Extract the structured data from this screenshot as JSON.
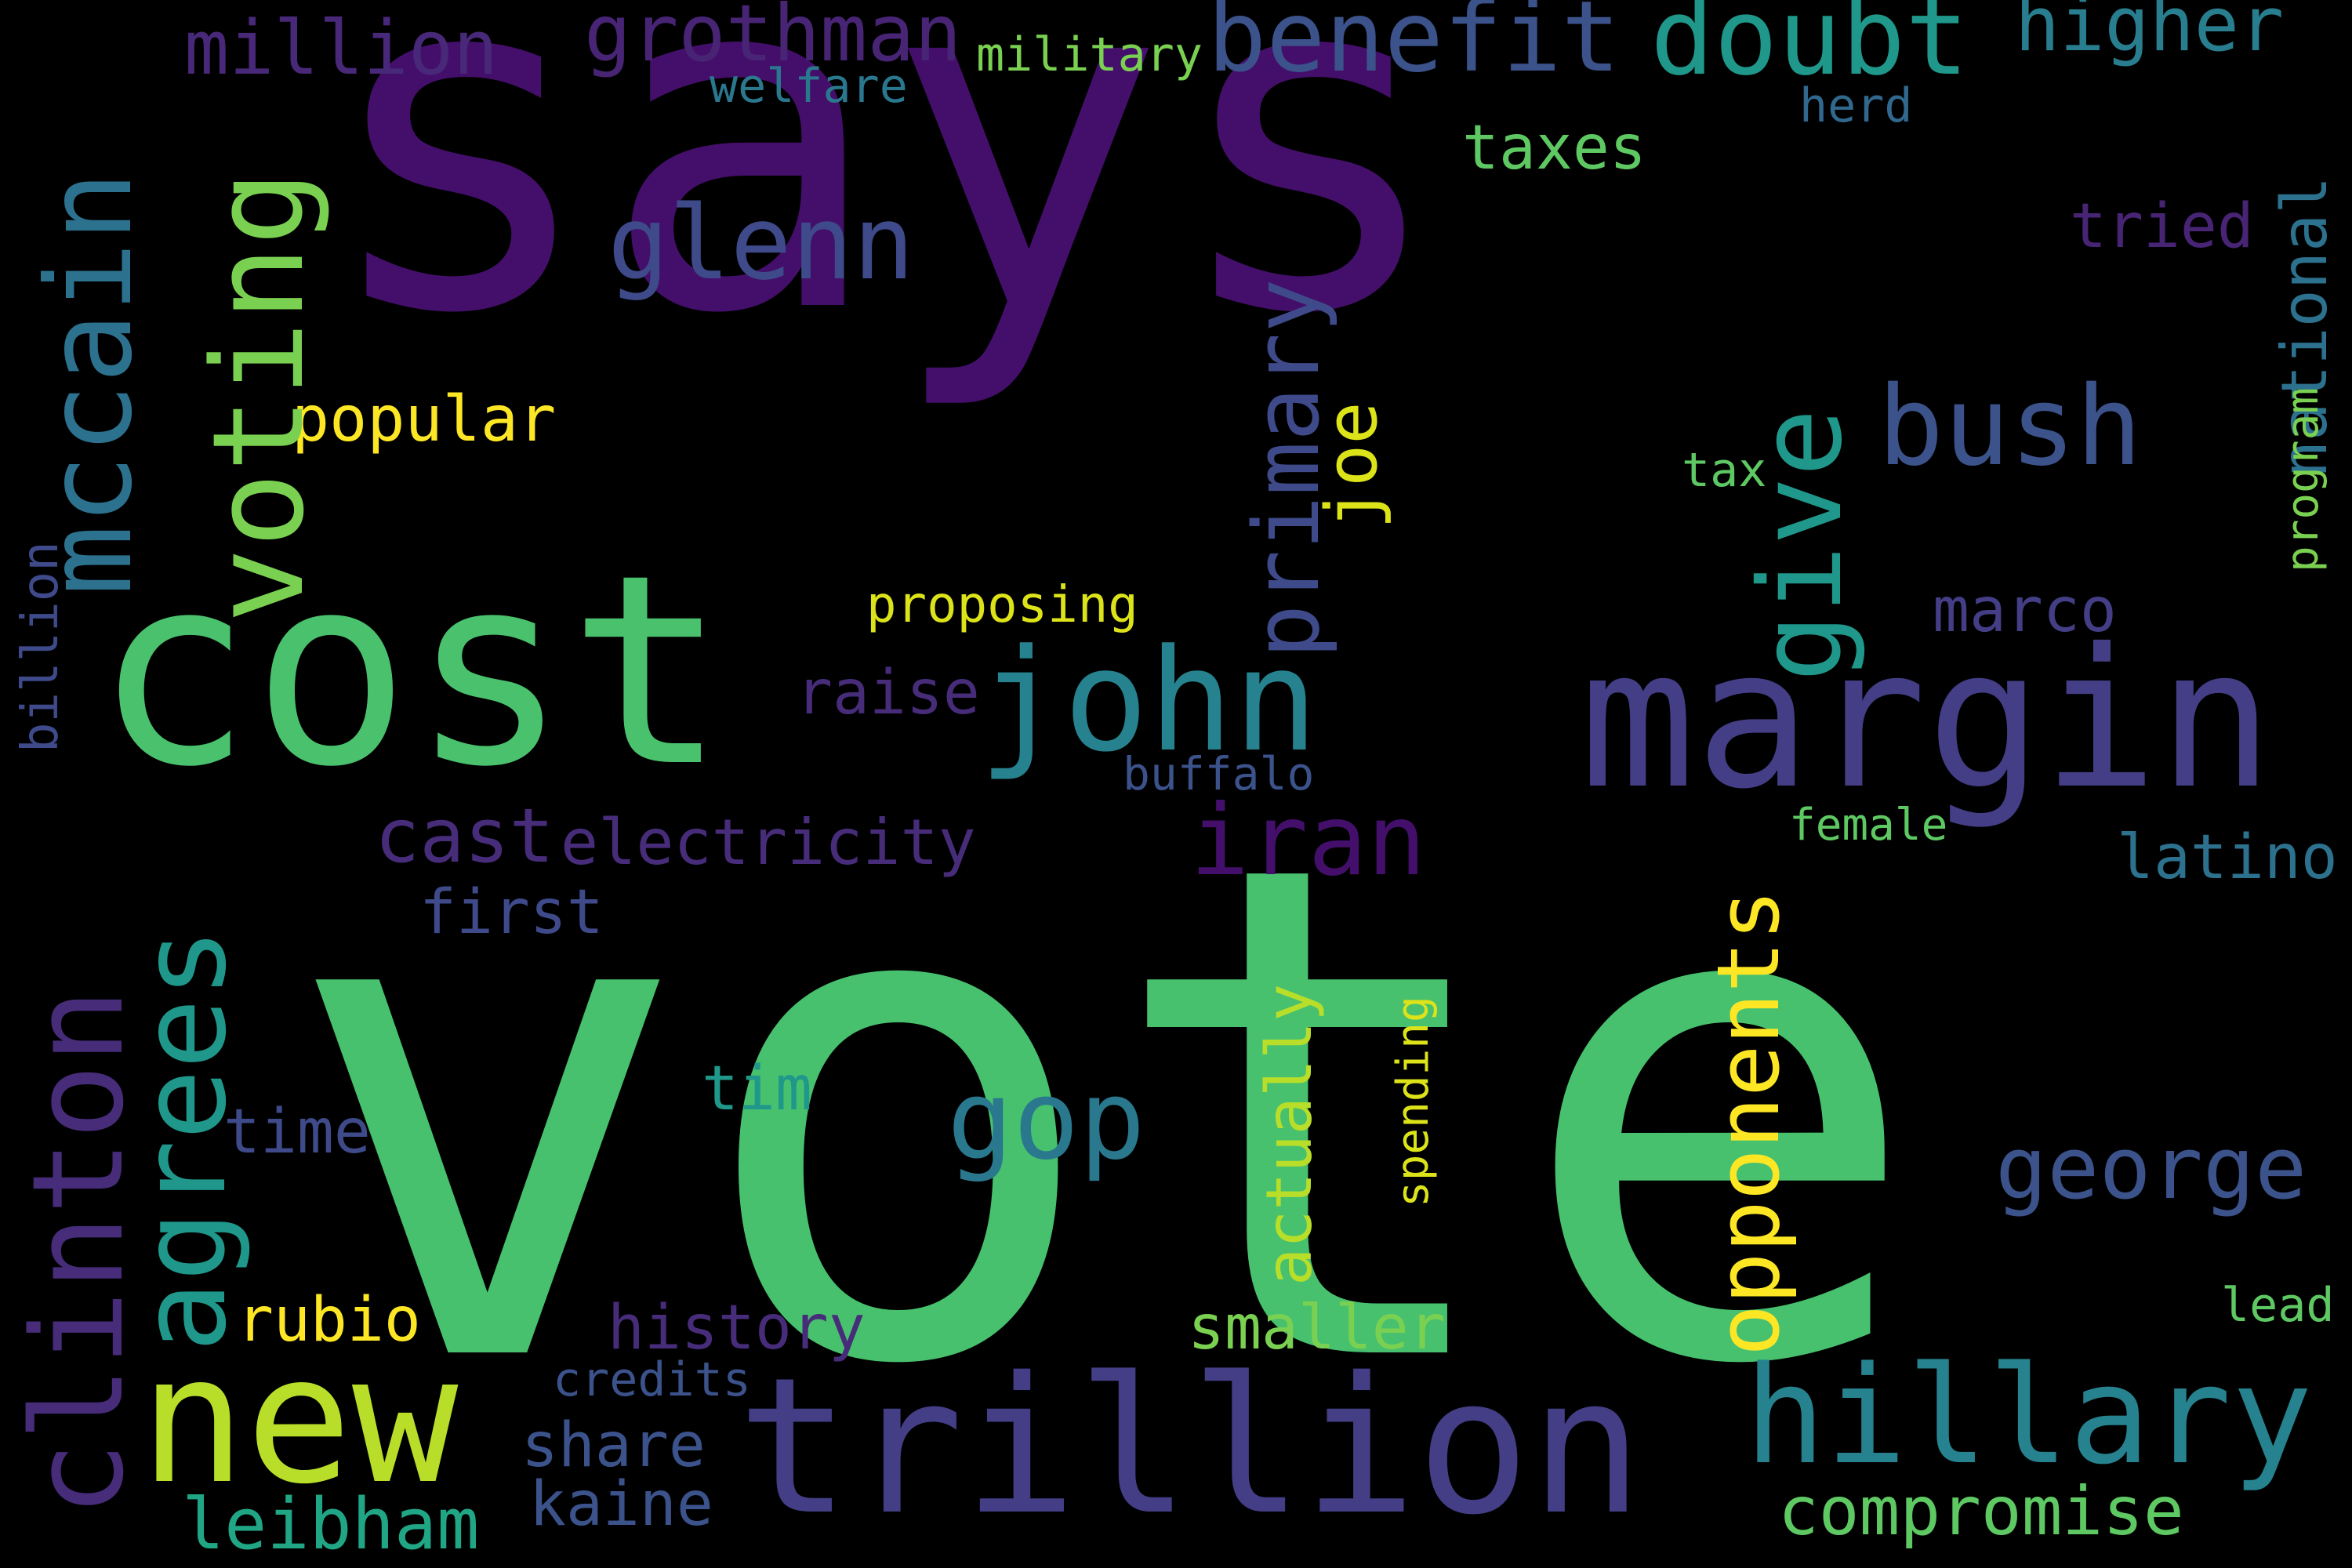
{
  "words": {
    "says": {
      "text": "says",
      "color": "#440f6b"
    },
    "vote": {
      "text": "vote",
      "color": "#47c16e"
    },
    "cost": {
      "text": "cost",
      "color": "#4ac16d"
    },
    "margin": {
      "text": "margin",
      "color": "#433e85"
    },
    "trillion": {
      "text": "trillion",
      "color": "#433e85"
    },
    "new": {
      "text": "new",
      "color": "#b8de29"
    },
    "hillary": {
      "text": "hillary",
      "color": "#26828e"
    },
    "john": {
      "text": "john",
      "color": "#26828e"
    },
    "benefit": {
      "text": "benefit",
      "color": "#3b528b"
    },
    "doubt": {
      "text": "doubt",
      "color": "#1f988b"
    },
    "glenn": {
      "text": "glenn",
      "color": "#3e4a89"
    },
    "bush": {
      "text": "bush",
      "color": "#3b528b"
    },
    "iran": {
      "text": "iran",
      "color": "#440f6b"
    },
    "gop": {
      "text": "gop",
      "color": "#2a788e"
    },
    "george": {
      "text": "george",
      "color": "#3b528b"
    },
    "grothman": {
      "text": "grothman",
      "color": "#482475"
    },
    "million": {
      "text": "million",
      "color": "#482878"
    },
    "higher": {
      "text": "higher",
      "color": "#287d8e"
    },
    "cast": {
      "text": "cast",
      "color": "#472c7a"
    },
    "electricity": {
      "text": "electricity",
      "color": "#472c7a"
    },
    "popular": {
      "text": "popular",
      "color": "#fde725"
    },
    "taxes": {
      "text": "taxes",
      "color": "#5ec962"
    },
    "tried": {
      "text": "tried",
      "color": "#482475"
    },
    "marco": {
      "text": "marco",
      "color": "#433e85"
    },
    "raise": {
      "text": "raise",
      "color": "#472c7a"
    },
    "latino": {
      "text": "latino",
      "color": "#2c718e"
    },
    "first": {
      "text": "first",
      "color": "#3e4a89"
    },
    "time": {
      "text": "time",
      "color": "#3e4a89"
    },
    "tim": {
      "text": "tim",
      "color": "#1f988b"
    },
    "rubio": {
      "text": "rubio",
      "color": "#fde725"
    },
    "smaller": {
      "text": "smaller",
      "color": "#7ad151"
    },
    "history": {
      "text": "history",
      "color": "#472c7a"
    },
    "share": {
      "text": "share",
      "color": "#3b528b"
    },
    "leibham": {
      "text": "leibham",
      "color": "#21a685"
    },
    "kaine": {
      "text": "kaine",
      "color": "#3b528b"
    },
    "compromise": {
      "text": "compromise",
      "color": "#5ec962"
    },
    "credits": {
      "text": "credits",
      "color": "#3b528b"
    },
    "military": {
      "text": "military",
      "color": "#7ad151"
    },
    "welfare": {
      "text": "welfare",
      "color": "#2a788e"
    },
    "herd": {
      "text": "herd",
      "color": "#31688e"
    },
    "proposing": {
      "text": "proposing",
      "color": "#dce319"
    },
    "buffalo": {
      "text": "buffalo",
      "color": "#3b528b"
    },
    "tax": {
      "text": "tax",
      "color": "#5ec962"
    },
    "female": {
      "text": "female",
      "color": "#5ec962"
    },
    "lead": {
      "text": "lead",
      "color": "#5ec962"
    },
    "mccain": {
      "text": "mccain",
      "color": "#2c718e"
    },
    "voting": {
      "text": "voting",
      "color": "#7ad151"
    },
    "clinton": {
      "text": "clinton",
      "color": "#472c7a"
    },
    "agrees": {
      "text": "agrees",
      "color": "#1f988b"
    },
    "primary": {
      "text": "primary",
      "color": "#3e4a89"
    },
    "joe": {
      "text": "joe",
      "color": "#dce319"
    },
    "give": {
      "text": "give",
      "color": "#1f988b"
    },
    "opponents": {
      "text": "opponents",
      "color": "#fde725"
    },
    "actually": {
      "text": "actually",
      "color": "#b8de29"
    },
    "spending": {
      "text": "spending",
      "color": "#dce319"
    },
    "billion": {
      "text": "billion",
      "color": "#3e4a89"
    },
    "national": {
      "text": "national",
      "color": "#2c718e"
    },
    "program": {
      "text": "program",
      "color": "#7ad151"
    }
  }
}
